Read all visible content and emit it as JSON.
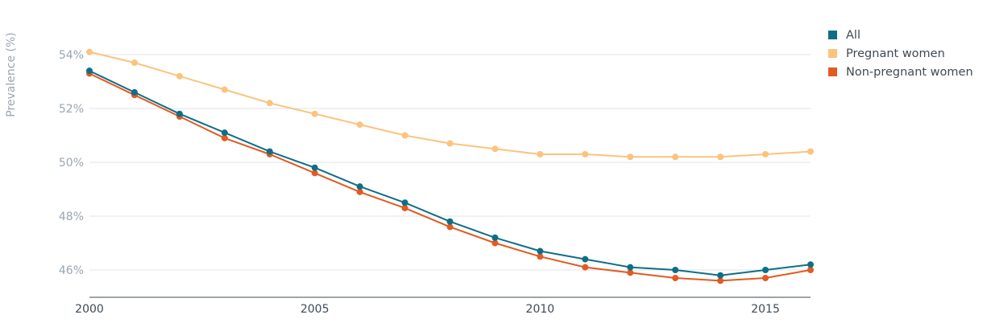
{
  "chart_data": {
    "type": "line",
    "ylabel": "Prevalence (%)",
    "xlabel": "",
    "x": [
      2000,
      2001,
      2002,
      2003,
      2004,
      2005,
      2006,
      2007,
      2008,
      2009,
      2010,
      2011,
      2012,
      2013,
      2014,
      2015,
      2016
    ],
    "xlim": [
      2000,
      2016
    ],
    "ylim": [
      45,
      55
    ],
    "xticks": [
      2000,
      2005,
      2010,
      2015
    ],
    "yticks": [
      46,
      48,
      50,
      52,
      54
    ],
    "ytick_labels": [
      "46%",
      "48%",
      "50%",
      "52%",
      "54%"
    ],
    "grid": "horizontal",
    "legend_position": "top-right",
    "series": [
      {
        "name": "All",
        "color": "#0f6e87",
        "values": [
          53.4,
          52.6,
          51.8,
          51.1,
          50.4,
          49.8,
          49.1,
          48.5,
          47.8,
          47.2,
          46.7,
          46.4,
          46.1,
          46.0,
          45.8,
          46.0,
          46.2
        ]
      },
      {
        "name": "Pregnant women",
        "color": "#fbc37e",
        "values": [
          54.1,
          53.7,
          53.2,
          52.7,
          52.2,
          51.8,
          51.4,
          51.0,
          50.7,
          50.5,
          50.3,
          50.3,
          50.2,
          50.2,
          50.2,
          50.3,
          50.4
        ]
      },
      {
        "name": "Non-pregnant women",
        "color": "#e35a22",
        "values": [
          53.3,
          52.5,
          51.7,
          50.9,
          50.3,
          49.6,
          48.9,
          48.3,
          47.6,
          47.0,
          46.5,
          46.1,
          45.9,
          45.7,
          45.6,
          45.7,
          46.0
        ]
      }
    ]
  }
}
